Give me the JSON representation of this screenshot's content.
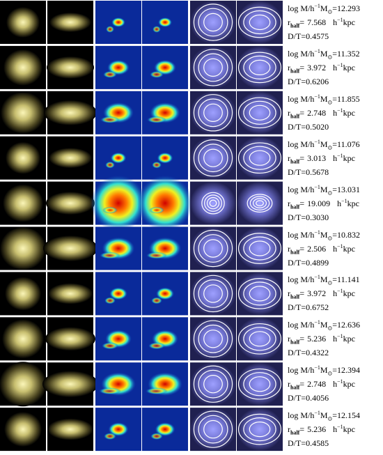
{
  "labels": {
    "log": "log M/h",
    "minus1": "−1",
    "msun": "M",
    "sun": "⊙",
    "eq": "=",
    "r": "r",
    "half": "half",
    "h": "h",
    "kpc": "kpc",
    "dt": "D/T="
  },
  "rows": [
    {
      "mass": "12.293",
      "rhalf": "7.568",
      "dt": "0.4575"
    },
    {
      "mass": "11.352",
      "rhalf": "3.972",
      "dt": "0.6206"
    },
    {
      "mass": "11.855",
      "rhalf": "2.748",
      "dt": "0.5020"
    },
    {
      "mass": "11.076",
      "rhalf": "3.013",
      "dt": "0.5678"
    },
    {
      "mass": "13.031",
      "rhalf": "19.009",
      "dt": "0.3030"
    },
    {
      "mass": "10.832",
      "rhalf": "2.506",
      "dt": "0.4899"
    },
    {
      "mass": "11.141",
      "rhalf": "3.972",
      "dt": "0.6752"
    },
    {
      "mass": "12.636",
      "rhalf": "5.236",
      "dt": "0.4322"
    },
    {
      "mass": "12.394",
      "rhalf": "2.748",
      "dt": "0.4056"
    },
    {
      "mass": "12.154",
      "rhalf": "5.236",
      "dt": "0.4585"
    }
  ]
}
